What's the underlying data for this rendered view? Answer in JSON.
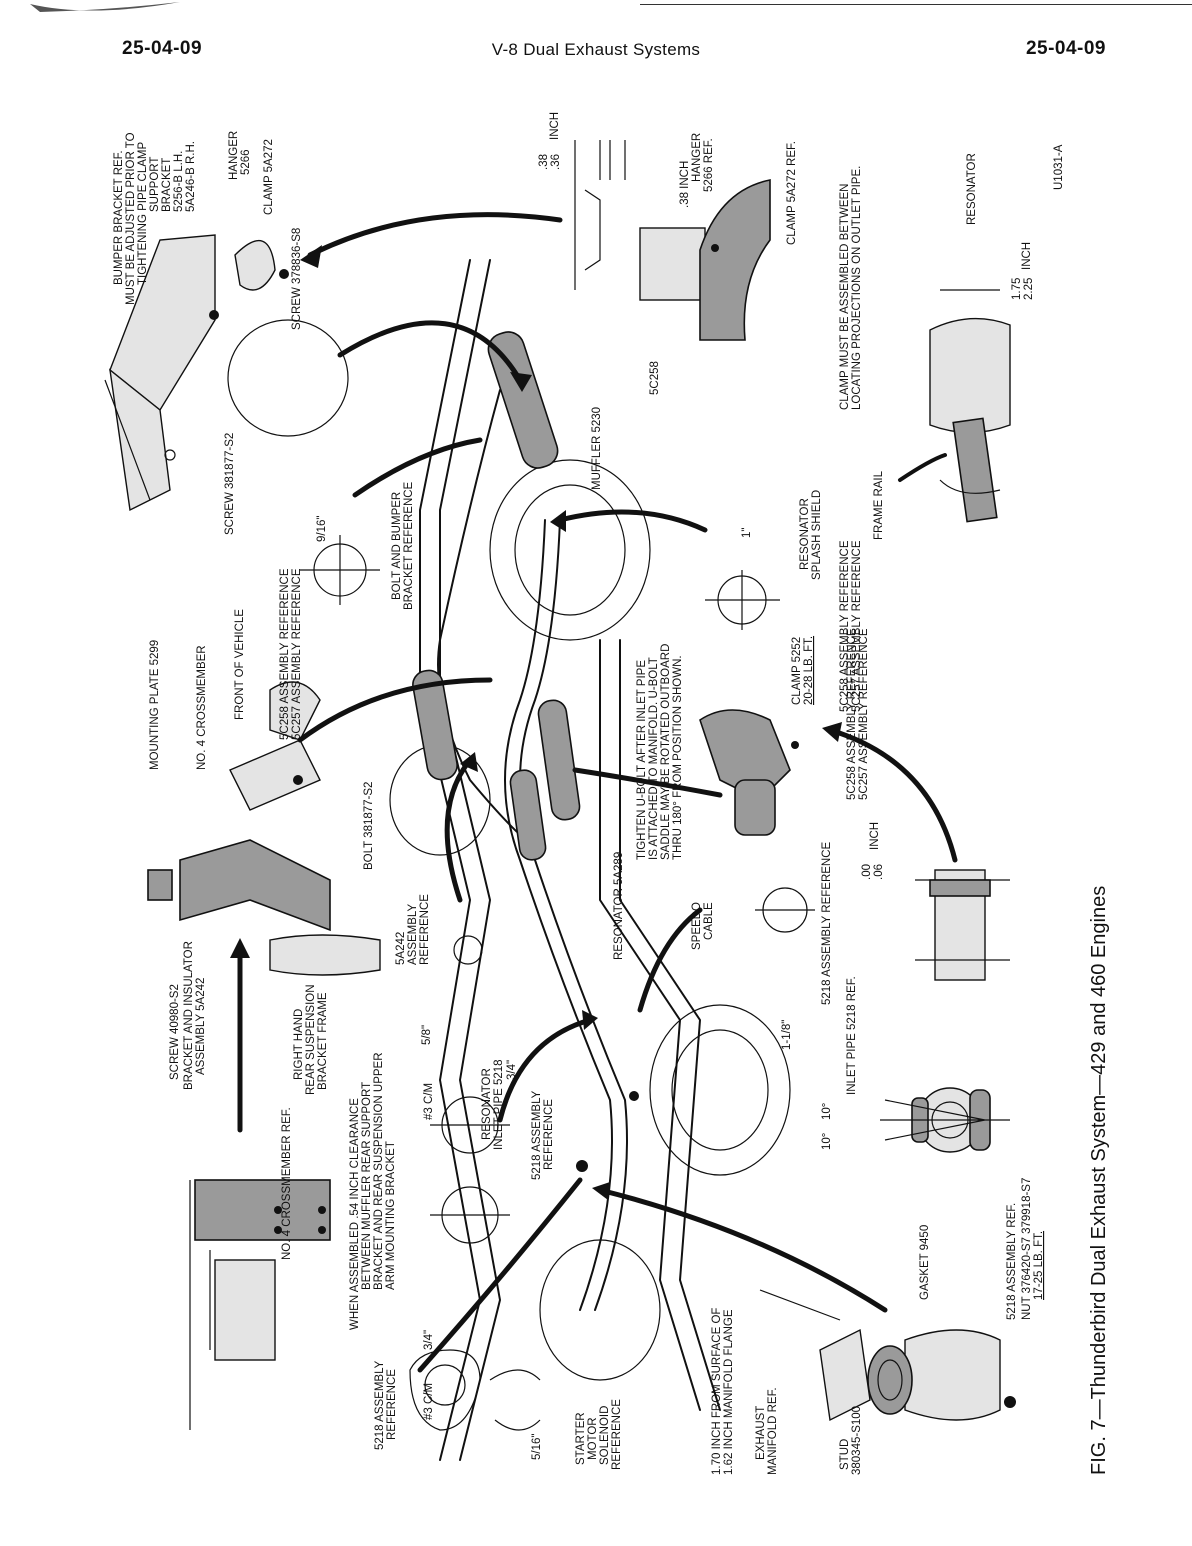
{
  "header": {
    "page_left": "25-04-09",
    "title": "V-8 Dual Exhaust Systems",
    "page_right": "25-04-09"
  },
  "figure": {
    "id": "U1031-A",
    "caption": "FIG. 7—Thunderbird Dual Exhaust System—429 and 460 Engines"
  },
  "labels": {
    "bumper_bracket": "BUMPER BRACKET REF.",
    "must_adjust": "MUST BE ADJUSTED PRIOR TO",
    "tightening_clamp": "TIGHTENING PIPE CLAMP",
    "support": "SUPPORT",
    "bracket": "BRACKET",
    "bracket_lh": "5256-B L.H.",
    "bracket_rh": "5A246-B R.H.",
    "hanger": "HANGER",
    "hanger_num": "5266",
    "clamp_5a272": "CLAMP 5A272",
    "screw_378836": "SCREW 378836-S8",
    "screw_381877": "SCREW 381877-S2",
    "inch_38_36_a": ".38",
    "inch_38_36_b": ".36",
    "inch_word_1": "INCH",
    "inch_38": ".38 INCH",
    "hanger_ref": "HANGER",
    "hanger_ref_num": "5266 REF.",
    "clamp_5a272_ref": "CLAMP 5A272 REF.",
    "clamp_between_1": "CLAMP MUST BE ASSEMBLED BETWEEN",
    "clamp_between_2": "LOCATING PROJECTIONS ON OUTLET PIPE.",
    "resonator_top": "RESONATOR",
    "inch_175": "1.75",
    "inch_225": "2.25",
    "inch_word_2": "INCH",
    "part_5c258": "5C258",
    "muffler": "MUFFLER 5230",
    "frame_rail": "FRAME RAIL",
    "resonator_shield_1": "RESONATOR",
    "resonator_shield_2": "SPLASH SHIELD",
    "one_inch": "1\"",
    "ref_5c258_b": "5C258 ASSEMBLY REFERENCE",
    "ref_5c257_b": "5C257 ASSEMBLY REFERENCE",
    "nine_sixteenths": "9/16\"",
    "bolt_bumper_1": "BOLT AND BUMPER",
    "bolt_bumper_2": "BRACKET REFERENCE",
    "ref_5c258_a": "5C258 ASSEMBLY REFERENCE",
    "ref_5c257_a": "5C257 ASSEMBLY REFERENCE",
    "front_of_vehicle": "FRONT OF VEHICLE",
    "no4_crossmember": "NO. 4 CROSSMEMBER",
    "mounting_plate": "MOUNTING PLATE 5299",
    "bolt_381877": "BOLT 381877-S2",
    "screw_40980": "SCREW 40980-S2",
    "bracket_insulator_1": "BRACKET AND INSULATOR",
    "bracket_insulator_2": "ASSEMBLY 5A242",
    "ref_5a242_1": "5A242",
    "ref_5a242_2": "ASSEMBLY",
    "ref_5a242_3": "REFERENCE",
    "rh_susp_1": "RIGHT HAND",
    "rh_susp_2": "REAR SUSPENSION",
    "rh_susp_3": "BRACKET FRAME",
    "five_eighths": "5/8\"",
    "res_inlet_1": "RESONATOR",
    "res_inlet_2": "INLET PIPE 5218",
    "resonator_5a289": "RESONATOR 5A289",
    "speedo_1": "SPEEDO",
    "speedo_2": "CABLE",
    "tighten_1": "TIGHTEN U-BOLT AFTER INLET PIPE",
    "tighten_2": "IS ATTACHED TO MANIFOLD. U-BOLT",
    "tighten_3": "SADDLE MAY BE ROTATED OUTBOARD",
    "tighten_4": "THRU 180° FROM POSITION SHOWN.",
    "clamp_5252": "CLAMP 5252",
    "clamp_5252_torque": "20-28 LB. FT.",
    "ref_5c258_c": "5C258 ASSEMBLY REFERENCE",
    "ref_5c257_c": "5C257 ASSEMBLY REFERENCE",
    "ref_5218_a": "5218 ASSEMBLY REFERENCE",
    "inch_00": ".00",
    "inch_06": ".06",
    "inch_word_3": "INCH",
    "inlet_pipe_ref": "INLET PIPE 5218 REF.",
    "one_one_eighth": "1-1/8\"",
    "ten_deg_a": "10°",
    "ten_deg_b": "10°",
    "no4_cross_ref": "NO. 4 CROSSMEMBER REF.",
    "clearance_1": "WHEN ASSEMBLED .54 INCH CLEARANCE",
    "clearance_2": "BETWEEN MUFFLER REAR SUPPORT",
    "clearance_3": "BRACKET AND REAR SUSPENSION UPPER",
    "clearance_4": "ARM MOUNTING BRACKET",
    "three_c_m_a": "#3 C/M",
    "three_quarter_a": "3/4\"",
    "three_c_m_b": "#3 C/M",
    "three_quarter_b": "3/4\"",
    "ref_5218_b1": "5218 ASSEMBLY",
    "ref_5218_b2": "REFERENCE",
    "ref_5218_c1": "5218 ASSEMBLY",
    "ref_5218_c2": "REFERENCE",
    "five_sixteenths": "5/16\"",
    "starter_1": "STARTER",
    "starter_2": "MOTOR",
    "starter_3": "SOLENOID",
    "starter_4": "REFERENCE",
    "manifold_flange_1": "1.70 INCH FROM SURFACE OF",
    "manifold_flange_2": "1.62 INCH MANIFOLD FLANGE",
    "exhaust_manifold_1": "EXHAUST",
    "exhaust_manifold_2": "MANIFOLD REF.",
    "stud_1": "STUD",
    "stud_2": "380345-S100",
    "gasket": "GASKET 9450",
    "ref_5218_d": "5218 ASSEMBLY REF.",
    "nut_1": "NUT 376420-S7 379918-S7",
    "nut_torque": "17-25 LB. FT."
  }
}
